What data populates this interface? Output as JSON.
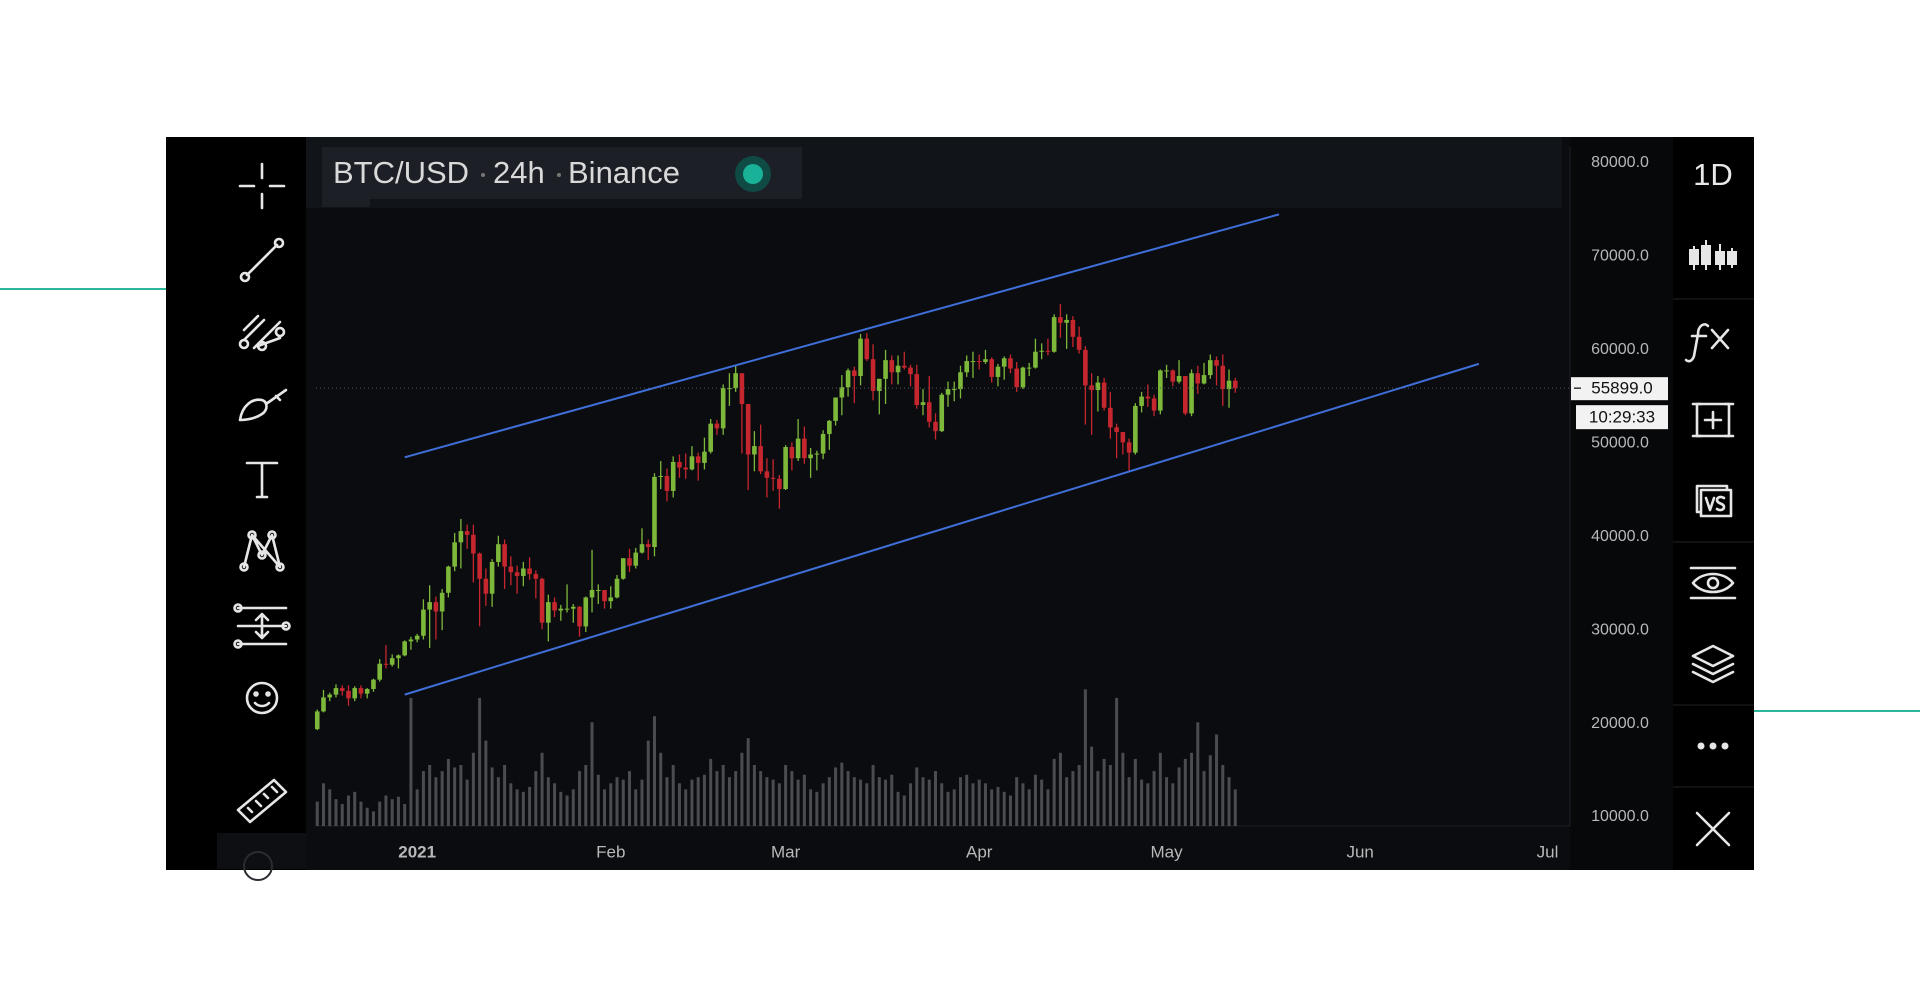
{
  "chart_data": {
    "type": "candlestick",
    "header": {
      "symbol": "BTC/USD",
      "interval": "24h",
      "exchange": "Binance"
    },
    "candles": [
      [
        19400,
        21500,
        19300,
        21300
      ],
      [
        21300,
        23600,
        21200,
        22800
      ],
      [
        22800,
        23300,
        22400,
        23100
      ],
      [
        23100,
        24200,
        22800,
        23800
      ],
      [
        23800,
        24100,
        23000,
        23500
      ],
      [
        23500,
        24100,
        21900,
        22700
      ],
      [
        22700,
        24000,
        22400,
        23800
      ],
      [
        23800,
        24100,
        22700,
        23200
      ],
      [
        23200,
        23800,
        22700,
        23700
      ],
      [
        23700,
        24800,
        23400,
        24700
      ],
      [
        24700,
        26900,
        24500,
        26400
      ],
      [
        26400,
        28400,
        25900,
        26300
      ],
      [
        26300,
        27400,
        26100,
        27000
      ],
      [
        27000,
        27400,
        25900,
        27300
      ],
      [
        27300,
        28900,
        27200,
        28800
      ],
      [
        28800,
        29300,
        27900,
        29000
      ],
      [
        29000,
        29600,
        28700,
        29400
      ],
      [
        29400,
        33300,
        29000,
        32200
      ],
      [
        32200,
        34800,
        28100,
        33000
      ],
      [
        33000,
        33600,
        29000,
        32000
      ],
      [
        32000,
        34400,
        30000,
        34000
      ],
      [
        34000,
        36900,
        33500,
        36800
      ],
      [
        36800,
        40400,
        36300,
        39400
      ],
      [
        39400,
        41900,
        36600,
        40600
      ],
      [
        40600,
        41300,
        38700,
        40200
      ],
      [
        40200,
        41300,
        35100,
        38200
      ],
      [
        38200,
        38300,
        30400,
        35500
      ],
      [
        35500,
        36600,
        32600,
        33900
      ],
      [
        33900,
        37600,
        32500,
        37300
      ],
      [
        37300,
        40100,
        36800,
        39200
      ],
      [
        39200,
        39700,
        34400,
        36800
      ],
      [
        36800,
        37900,
        34800,
        36200
      ],
      [
        36200,
        36900,
        33900,
        35800
      ],
      [
        35800,
        37300,
        34700,
        36600
      ],
      [
        36600,
        37800,
        35400,
        36000
      ],
      [
        36000,
        36400,
        33400,
        35500
      ],
      [
        35500,
        35600,
        30100,
        30800
      ],
      [
        30800,
        33800,
        28800,
        33000
      ],
      [
        33000,
        33500,
        31400,
        32100
      ],
      [
        32100,
        32700,
        31000,
        32300
      ],
      [
        32300,
        34900,
        31900,
        32300
      ],
      [
        32300,
        32800,
        30800,
        32500
      ],
      [
        32500,
        32600,
        29300,
        30400
      ],
      [
        30400,
        33600,
        29800,
        33500
      ],
      [
        33500,
        38600,
        31900,
        34300
      ],
      [
        34300,
        34900,
        32800,
        34300
      ],
      [
        34300,
        34300,
        32300,
        33100
      ],
      [
        33100,
        34700,
        32300,
        33500
      ],
      [
        33500,
        35900,
        33400,
        35500
      ],
      [
        35500,
        37700,
        35400,
        37700
      ],
      [
        37700,
        38700,
        36200,
        36900
      ],
      [
        36900,
        38800,
        36600,
        38300
      ],
      [
        38300,
        40900,
        38200,
        39200
      ],
      [
        39200,
        39700,
        37500,
        38900
      ],
      [
        38900,
        46800,
        37900,
        46400
      ],
      [
        46400,
        48100,
        45100,
        46500
      ],
      [
        46500,
        47300,
        43800,
        44900
      ],
      [
        44900,
        48600,
        44200,
        48000
      ],
      [
        48000,
        48800,
        46300,
        47400
      ],
      [
        47400,
        48900,
        46200,
        47200
      ],
      [
        47200,
        49700,
        47100,
        48600
      ],
      [
        48600,
        49000,
        46000,
        47900
      ],
      [
        47900,
        50600,
        47200,
        49100
      ],
      [
        49100,
        52600,
        48900,
        52100
      ],
      [
        52100,
        52500,
        50900,
        51600
      ],
      [
        51600,
        56300,
        50900,
        55900
      ],
      [
        55900,
        57500,
        54000,
        55900
      ],
      [
        55900,
        58300,
        55500,
        57500
      ],
      [
        57500,
        57500,
        48900,
        54200
      ],
      [
        54200,
        54200,
        45000,
        48800
      ],
      [
        48800,
        51300,
        47000,
        49700
      ],
      [
        49700,
        52000,
        46700,
        47000
      ],
      [
        47000,
        48400,
        44200,
        46300
      ],
      [
        46300,
        48300,
        44900,
        46200
      ],
      [
        46200,
        46600,
        43000,
        45100
      ],
      [
        45100,
        49800,
        45000,
        49600
      ],
      [
        49600,
        50100,
        47100,
        48400
      ],
      [
        48400,
        52600,
        48100,
        50500
      ],
      [
        50500,
        51800,
        47800,
        48400
      ],
      [
        48400,
        49500,
        46300,
        48800
      ],
      [
        48800,
        49200,
        47100,
        48900
      ],
      [
        48900,
        51400,
        48300,
        51000
      ],
      [
        51000,
        52500,
        49300,
        52400
      ],
      [
        52400,
        54900,
        51900,
        54900
      ],
      [
        54900,
        57300,
        53000,
        56000
      ],
      [
        56000,
        58000,
        55000,
        57800
      ],
      [
        57800,
        58200,
        54300,
        57200
      ],
      [
        57200,
        61700,
        56200,
        61200
      ],
      [
        61200,
        61800,
        58800,
        59000
      ],
      [
        59000,
        60600,
        54600,
        55600
      ],
      [
        55600,
        56900,
        53100,
        56900
      ],
      [
        56900,
        60000,
        54200,
        58900
      ],
      [
        58900,
        59400,
        56300,
        57600
      ],
      [
        57600,
        59400,
        56300,
        58300
      ],
      [
        58300,
        59800,
        57900,
        58100
      ],
      [
        58100,
        58400,
        56100,
        57400
      ],
      [
        57400,
        58400,
        53700,
        54100
      ],
      [
        54100,
        55800,
        53000,
        54400
      ],
      [
        54400,
        57200,
        51700,
        52300
      ],
      [
        52300,
        53200,
        50400,
        51300
      ],
      [
        51300,
        55400,
        51200,
        55200
      ],
      [
        55200,
        56600,
        53900,
        55800
      ],
      [
        55800,
        56600,
        54500,
        55800
      ],
      [
        55800,
        58300,
        54800,
        57600
      ],
      [
        57600,
        59400,
        57100,
        58800
      ],
      [
        58800,
        59800,
        57000,
        58800
      ],
      [
        58800,
        59500,
        57900,
        58700
      ],
      [
        58700,
        60000,
        58500,
        59000
      ],
      [
        59000,
        59200,
        56500,
        57100
      ],
      [
        57100,
        58500,
        56100,
        58200
      ],
      [
        58200,
        59300,
        56800,
        59100
      ],
      [
        59100,
        59500,
        57500,
        58000
      ],
      [
        58000,
        58700,
        55500,
        56000
      ],
      [
        56000,
        58200,
        55800,
        58100
      ],
      [
        58100,
        58600,
        57200,
        58100
      ],
      [
        58100,
        61200,
        58000,
        59800
      ],
      [
        59800,
        60700,
        59000,
        59900
      ],
      [
        59900,
        61200,
        59400,
        59800
      ],
      [
        59800,
        63800,
        59700,
        63500
      ],
      [
        63500,
        64900,
        61300,
        62900
      ],
      [
        62900,
        63800,
        60100,
        63200
      ],
      [
        63200,
        63600,
        60300,
        61400
      ],
      [
        61400,
        62500,
        59600,
        60000
      ],
      [
        60000,
        60400,
        52000,
        56200
      ],
      [
        56200,
        57500,
        50900,
        55700
      ],
      [
        55700,
        57200,
        53400,
        56500
      ],
      [
        56500,
        57000,
        53500,
        53800
      ],
      [
        53800,
        55500,
        50500,
        51700
      ],
      [
        51700,
        52100,
        48400,
        51200
      ],
      [
        51200,
        51200,
        48800,
        50100
      ],
      [
        50100,
        50500,
        47000,
        49000
      ],
      [
        49000,
        54300,
        48800,
        54000
      ],
      [
        54000,
        55500,
        53300,
        55000
      ],
      [
        55000,
        56300,
        53900,
        54800
      ],
      [
        54800,
        55200,
        52900,
        53500
      ],
      [
        53500,
        57900,
        53100,
        57800
      ],
      [
        57800,
        58400,
        57000,
        57800
      ],
      [
        57800,
        57900,
        56100,
        56600
      ],
      [
        56600,
        58900,
        56400,
        57200
      ],
      [
        57200,
        57200,
        53000,
        53200
      ],
      [
        53200,
        57900,
        52900,
        57500
      ],
      [
        57500,
        58300,
        55300,
        56400
      ],
      [
        56400,
        58600,
        56300,
        57300
      ],
      [
        57300,
        59500,
        56900,
        58900
      ],
      [
        58900,
        59300,
        56200,
        58300
      ],
      [
        58300,
        59500,
        54000,
        55800
      ],
      [
        55800,
        57900,
        53800,
        56700
      ],
      [
        56700,
        57000,
        55400,
        55899
      ]
    ],
    "volume": [
      20,
      35,
      30,
      22,
      18,
      25,
      28,
      20,
      15,
      12,
      20,
      25,
      22,
      24,
      18,
      105,
      30,
      45,
      50,
      40,
      45,
      55,
      48,
      50,
      38,
      60,
      105,
      70,
      48,
      40,
      50,
      35,
      30,
      28,
      32,
      45,
      60,
      40,
      35,
      28,
      25,
      30,
      45,
      50,
      85,
      42,
      30,
      35,
      40,
      38,
      45,
      30,
      38,
      70,
      90,
      60,
      40,
      50,
      35,
      30,
      38,
      40,
      42,
      55,
      45,
      50,
      40,
      45,
      60,
      72,
      50,
      45,
      40,
      38,
      35,
      50,
      45,
      38,
      42,
      30,
      28,
      35,
      40,
      48,
      52,
      45,
      40,
      38,
      35,
      50,
      40,
      38,
      42,
      28,
      25,
      35,
      48,
      40,
      38,
      45,
      35,
      28,
      30,
      40,
      42,
      35,
      38,
      35,
      30,
      32,
      28,
      25,
      40,
      35,
      30,
      42,
      38,
      30,
      55,
      60,
      40,
      45,
      50,
      112,
      65,
      45,
      55,
      50,
      105,
      60,
      40,
      55,
      38,
      35,
      45,
      60,
      40,
      35,
      48,
      55,
      60,
      85,
      45,
      58,
      75,
      50,
      40,
      30
    ],
    "up_color": "#7db83a",
    "down_color": "#c6262e",
    "volume_color": "#4a4c52",
    "trendline_color": "#3f6fd8",
    "trendlines": [
      {
        "x": [
          14,
          154
        ],
        "y": [
          48500,
          74500
        ]
      },
      {
        "x": [
          14,
          186
        ],
        "y": [
          23100,
          58500
        ]
      }
    ],
    "last_price": {
      "value": 55899,
      "label": "55899.0"
    },
    "countdown": "10:29:33",
    "xlim": [
      -0.2,
      200.6
    ],
    "xticks": [
      {
        "value": 16,
        "label": "2021"
      },
      {
        "value": 47,
        "label": "Feb"
      },
      {
        "value": 75,
        "label": "Mar"
      },
      {
        "value": 106,
        "label": "Apr"
      },
      {
        "value": 136,
        "label": "May"
      },
      {
        "value": 167,
        "label": "Jun"
      },
      {
        "value": 197,
        "label": "Jul"
      }
    ],
    "ylim": [
      10000,
      80000
    ],
    "yticks": [
      {
        "value": 80000,
        "label": "80000.0"
      },
      {
        "value": 70000,
        "label": "70000.0"
      },
      {
        "value": 60000,
        "label": "60000.0"
      },
      {
        "value": 50000,
        "label": "50000.0"
      },
      {
        "value": 40000,
        "label": "40000.0"
      },
      {
        "value": 30000,
        "label": "30000.0"
      },
      {
        "value": 20000,
        "label": "20000.0"
      },
      {
        "value": 10000,
        "label": "10000.0"
      }
    ],
    "grid": false
  },
  "toolbar": {
    "interval_button": "1D"
  }
}
